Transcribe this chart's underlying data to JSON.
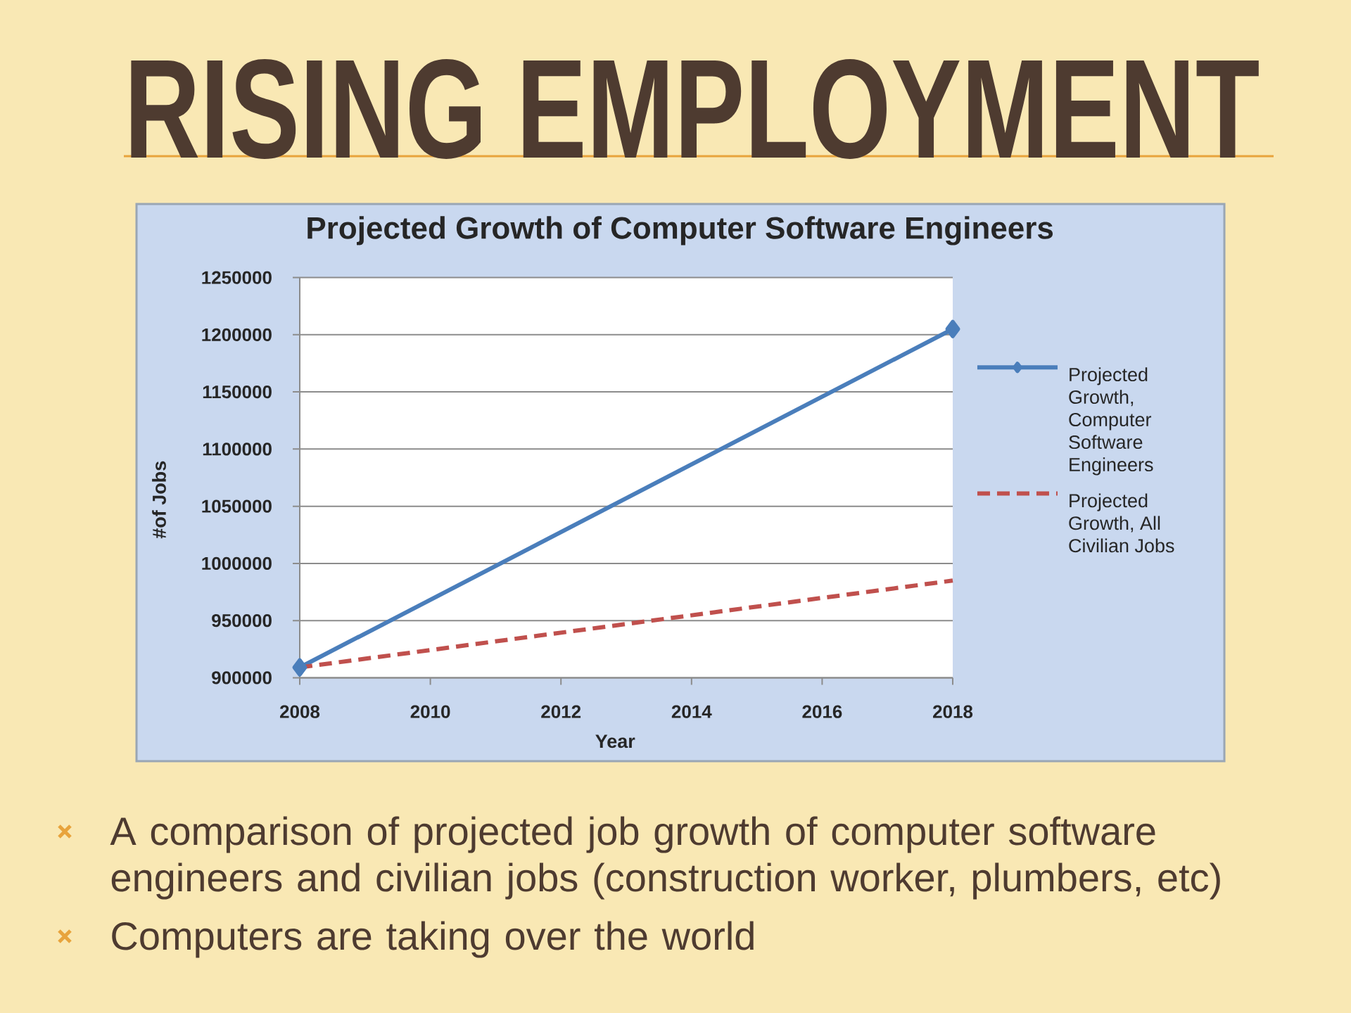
{
  "chart_data": {
    "type": "line",
    "title": "RISING EMPLOYMENT",
    "subtitle": "Projected Growth of Computer Software Engineers",
    "xlabel": "Year",
    "ylabel": "#of Jobs",
    "x": [
      2008,
      2018
    ],
    "series": [
      {
        "name": "Projected Growth, Computer Software Engineers",
        "color": "#4a7ebb",
        "values": [
          909000,
          1205000
        ],
        "marker": "diamond",
        "line_style": "solid"
      },
      {
        "name": "Projected Growth, All Civilian Jobs",
        "color": "#c0504d",
        "values": [
          909000,
          985000
        ],
        "marker": "none",
        "line_style": "dashed"
      }
    ],
    "xlim": [
      2008,
      2018
    ],
    "xticks": [
      2008,
      2010,
      2012,
      2014,
      2016,
      2018
    ],
    "ylim": [
      900000,
      1250000
    ],
    "yticks": [
      900000,
      950000,
      1000000,
      1050000,
      1100000,
      1150000,
      1200000,
      1250000
    ],
    "grid": "y",
    "legend": "right",
    "annotations": [
      "A comparison of projected job growth of computer software engineers and civilian jobs (construction worker, plumbers, etc)",
      "Computers are taking over the world"
    ]
  }
}
